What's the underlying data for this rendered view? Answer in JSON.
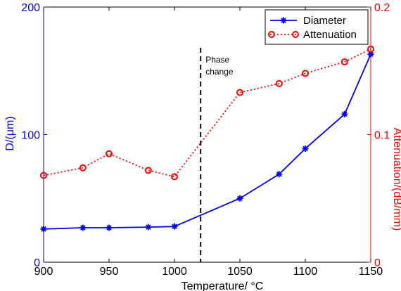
{
  "chart_data": {
    "type": "line",
    "x": [
      900,
      930,
      950,
      980,
      1000,
      1050,
      1080,
      1100,
      1130,
      1150
    ],
    "xlabel": "Temperature/   °C",
    "xlim": [
      900,
      1150
    ],
    "xticks": [
      900,
      950,
      1000,
      1050,
      1100,
      1150
    ],
    "left_axis": {
      "label": "D/(μm)",
      "lim": [
        0,
        200
      ],
      "ticks": [
        0,
        100,
        200
      ],
      "tick_labels": [
        "0",
        "100",
        "200"
      ],
      "color": "#0000ff"
    },
    "right_axis": {
      "label": "Attenuation/(dB/mm)",
      "lim": [
        0,
        0.2
      ],
      "ticks": [
        0,
        0.1,
        0.2
      ],
      "tick_labels": [
        "0",
        "0.1",
        "0.2"
      ],
      "color": "#ff0000"
    },
    "series": [
      {
        "name": "Diameter",
        "axis": "left",
        "color": "#0000ff",
        "line": "solid",
        "marker": "star",
        "values": [
          26,
          27,
          27,
          27.5,
          28,
          50,
          69,
          89,
          116,
          163
        ]
      },
      {
        "name": "Attenuation",
        "axis": "right",
        "color": "#ff0000",
        "line": "dotted",
        "marker": "circle",
        "values": [
          0.068,
          0.074,
          0.085,
          0.072,
          0.067,
          0.133,
          0.14,
          0.148,
          0.157,
          0.167
        ]
      }
    ],
    "annotation": {
      "text_lines": [
        "Phase",
        "change"
      ],
      "x": 1020
    },
    "legend_position": "top-right",
    "grid": false
  }
}
